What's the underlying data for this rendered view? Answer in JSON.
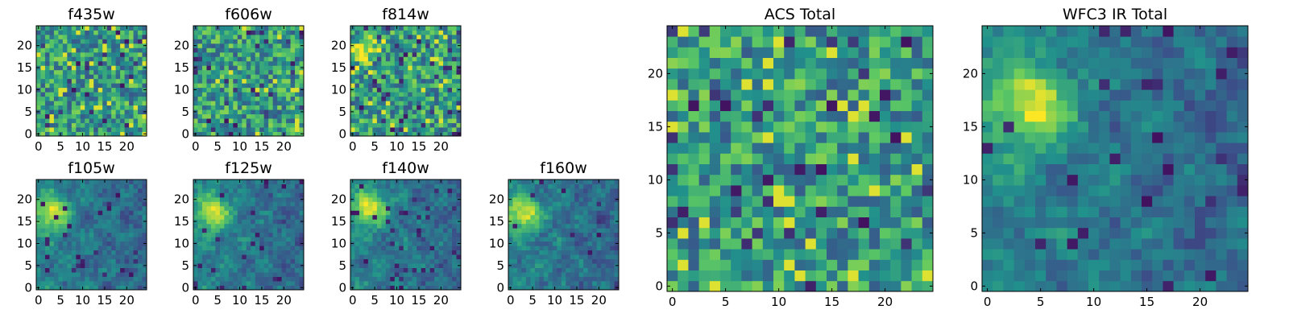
{
  "colormap": [
    "#440154",
    "#3b528b",
    "#21918c",
    "#5ec962",
    "#fde725"
  ],
  "chart_data": [
    {
      "type": "heatmap",
      "title": "f435w",
      "x_ticks": [
        "0",
        "5",
        "10",
        "15",
        "20"
      ],
      "y_ticks": [
        "0",
        "5",
        "10",
        "15",
        "20"
      ],
      "grid_size": [
        25,
        25
      ],
      "x_range": [
        0,
        24
      ],
      "y_range": [
        0,
        24
      ],
      "grid": false,
      "texture": "noisy"
    },
    {
      "type": "heatmap",
      "title": "f606w",
      "x_ticks": [
        "0",
        "5",
        "10",
        "15",
        "20"
      ],
      "y_ticks": [
        "0",
        "5",
        "10",
        "15",
        "20"
      ],
      "grid_size": [
        25,
        25
      ],
      "x_range": [
        0,
        24
      ],
      "y_range": [
        0,
        24
      ],
      "grid": false,
      "texture": "noisy"
    },
    {
      "type": "heatmap",
      "title": "f814w",
      "x_ticks": [
        "0",
        "5",
        "10",
        "15",
        "20"
      ],
      "y_ticks": [
        "0",
        "5",
        "10",
        "15",
        "20"
      ],
      "grid_size": [
        25,
        25
      ],
      "x_range": [
        0,
        24
      ],
      "y_range": [
        0,
        24
      ],
      "grid": false,
      "texture": "noisy",
      "bright_source": {
        "x": 3,
        "y": 19
      }
    },
    {
      "type": "heatmap",
      "title": "f105w",
      "x_ticks": [
        "0",
        "5",
        "10",
        "15",
        "20"
      ],
      "y_ticks": [
        "0",
        "5",
        "10",
        "15",
        "20"
      ],
      "grid_size": [
        25,
        25
      ],
      "x_range": [
        0,
        24
      ],
      "y_range": [
        0,
        24
      ],
      "grid": false,
      "texture": "smooth",
      "bright_source": {
        "x": 3,
        "y": 17
      }
    },
    {
      "type": "heatmap",
      "title": "f125w",
      "x_ticks": [
        "0",
        "5",
        "10",
        "15",
        "20"
      ],
      "y_ticks": [
        "0",
        "5",
        "10",
        "15",
        "20"
      ],
      "grid_size": [
        25,
        25
      ],
      "x_range": [
        0,
        24
      ],
      "y_range": [
        0,
        24
      ],
      "grid": false,
      "texture": "smooth",
      "bright_source": {
        "x": 4,
        "y": 17
      }
    },
    {
      "type": "heatmap",
      "title": "f140w",
      "x_ticks": [
        "0",
        "5",
        "10",
        "15",
        "20"
      ],
      "y_ticks": [
        "0",
        "5",
        "10",
        "15",
        "20"
      ],
      "grid_size": [
        25,
        25
      ],
      "x_range": [
        0,
        24
      ],
      "y_range": [
        0,
        24
      ],
      "grid": false,
      "texture": "smooth",
      "bright_source": {
        "x": 4,
        "y": 18
      }
    },
    {
      "type": "heatmap",
      "title": "f160w",
      "x_ticks": [
        "0",
        "5",
        "10",
        "15",
        "20"
      ],
      "y_ticks": [
        "0",
        "5",
        "10",
        "15",
        "20"
      ],
      "grid_size": [
        25,
        25
      ],
      "x_range": [
        0,
        24
      ],
      "y_range": [
        0,
        24
      ],
      "grid": false,
      "texture": "smooth",
      "bright_source": {
        "x": 3,
        "y": 17
      }
    },
    {
      "type": "heatmap",
      "title": "ACS Total",
      "x_ticks": [
        "0",
        "5",
        "10",
        "15",
        "20"
      ],
      "y_ticks": [
        "0",
        "5",
        "10",
        "15",
        "20"
      ],
      "grid_size": [
        25,
        25
      ],
      "x_range": [
        0,
        24
      ],
      "y_range": [
        0,
        24
      ],
      "grid": false,
      "texture": "noisy"
    },
    {
      "type": "heatmap",
      "title": "WFC3 IR Total",
      "x_ticks": [
        "0",
        "5",
        "10",
        "15",
        "20"
      ],
      "y_ticks": [
        "0",
        "5",
        "10",
        "15",
        "20"
      ],
      "grid_size": [
        25,
        25
      ],
      "x_range": [
        0,
        24
      ],
      "y_range": [
        0,
        24
      ],
      "grid": false,
      "texture": "smooth",
      "bright_source": {
        "x": 4,
        "y": 17
      }
    }
  ]
}
